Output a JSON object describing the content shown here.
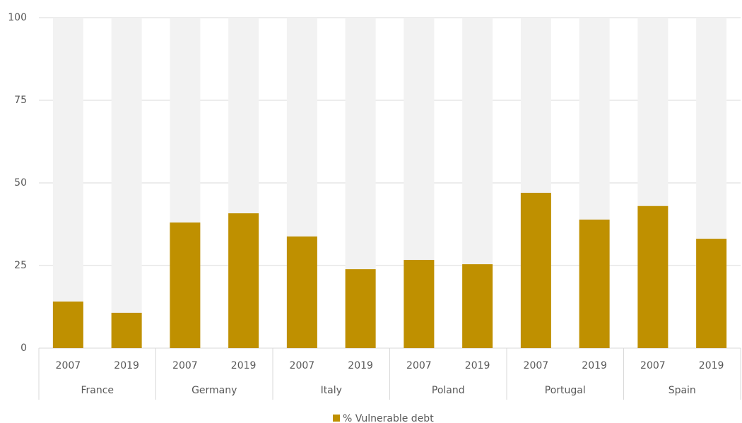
{
  "chart_data": {
    "type": "bar",
    "categories": [
      "2007",
      "2019",
      "2007",
      "2019",
      "2007",
      "2019",
      "2007",
      "2019",
      "2007",
      "2019",
      "2007",
      "2019"
    ],
    "groups": [
      "France",
      "Germany",
      "Italy",
      "Poland",
      "Portugal",
      "Spain"
    ],
    "series": [
      {
        "name": "% Vulnerable debt",
        "color": "#bf9000",
        "values": [
          14.1,
          10.7,
          38.0,
          40.8,
          33.8,
          23.9,
          26.7,
          25.4,
          47.0,
          38.9,
          43.0,
          33.1
        ]
      }
    ],
    "track_color": "#f2f2f2",
    "ylim": [
      0,
      100
    ],
    "yticks": [
      0,
      25,
      50,
      75,
      100
    ],
    "grid": true,
    "legend": "bottom"
  }
}
